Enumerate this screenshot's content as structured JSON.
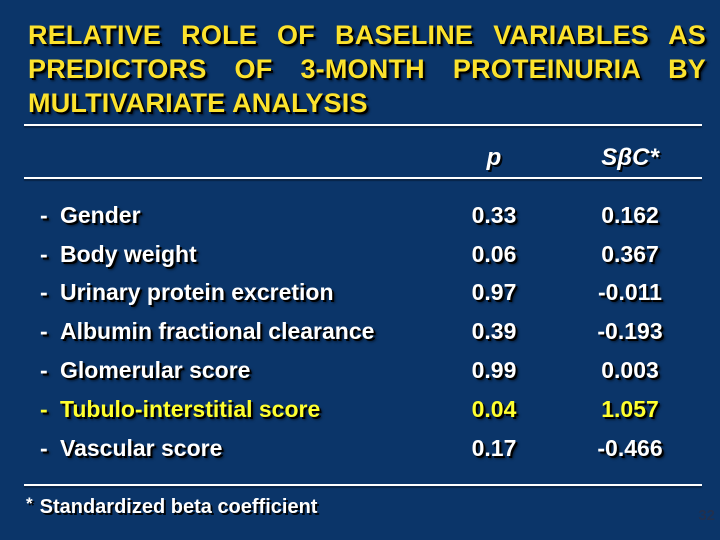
{
  "slide": {
    "title": {
      "lines": [
        "RELATIVE ROLE OF BASELINE VARIABLES AS",
        "PREDICTORS OF 3-MONTH PROTEINURIA BY",
        "MULTIVARIATE ANALYSIS"
      ]
    },
    "table": {
      "bullet": "-",
      "headers": {
        "p": "p",
        "sbc": "SβC*"
      },
      "rows": [
        {
          "label": "Gender",
          "p": "0.33",
          "sbc": "0.162",
          "highlight": false
        },
        {
          "label": "Body weight",
          "p": "0.06",
          "sbc": "0.367",
          "highlight": false
        },
        {
          "label": "Urinary protein excretion",
          "p": "0.97",
          "sbc": "-0.011",
          "highlight": false
        },
        {
          "label": "Albumin fractional clearance",
          "p": "0.39",
          "sbc": "-0.193",
          "highlight": false
        },
        {
          "label": "Glomerular score",
          "p": "0.99",
          "sbc": "0.003",
          "highlight": false
        },
        {
          "label": "Tubulo-interstitial score",
          "p": "0.04",
          "sbc": "1.057",
          "highlight": true
        },
        {
          "label": "Vascular score",
          "p": "0.17",
          "sbc": "-0.466",
          "highlight": false
        }
      ]
    },
    "footnote": {
      "marker": "*",
      "text": "Standardized beta coefficient"
    },
    "page_number": "32"
  },
  "colors": {
    "background": "#0b3569",
    "title-yellow": "#fce22d",
    "highlight-yellow": "#ffff2f",
    "text-white": "#ffffff",
    "rule-white": "#ffffff",
    "page-number": "#20304f"
  }
}
